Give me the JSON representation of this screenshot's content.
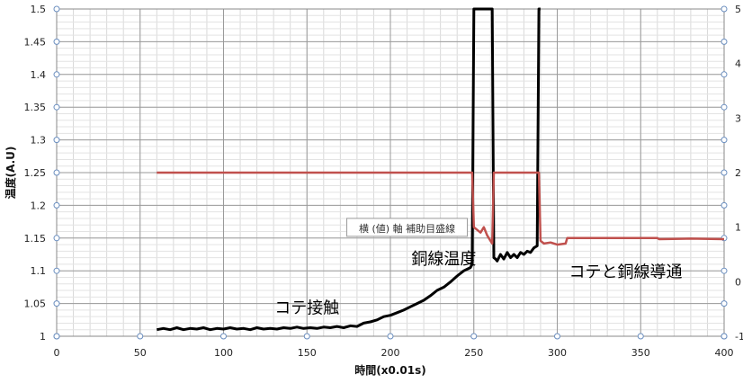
{
  "chart_data": {
    "type": "line",
    "title": "",
    "xlabel": "時間(x0.01s)",
    "ylabel": "温度(A.U)",
    "xlim": [
      0,
      400
    ],
    "ylim": [
      1,
      1.5
    ],
    "y2lim": [
      -1,
      5
    ],
    "x_ticks": [
      0,
      50,
      100,
      150,
      200,
      250,
      300,
      350,
      400
    ],
    "y_ticks": [
      1,
      1.05,
      1.1,
      1.15,
      1.2,
      1.25,
      1.3,
      1.35,
      1.4,
      1.45,
      1.5
    ],
    "y_tick_labels": [
      "1",
      "1.05",
      "1.1",
      "1.15",
      "1.2",
      "1.25",
      "1.3",
      "1.35",
      "1.4",
      "1.45",
      "1.5"
    ],
    "y2_ticks": [
      -1,
      0,
      1,
      2,
      3,
      4,
      5
    ],
    "grid": true,
    "series": [
      {
        "name": "",
        "color": "#000000",
        "axis": "left",
        "x": [
          60,
          64,
          68,
          72,
          76,
          80,
          84,
          88,
          92,
          96,
          100,
          104,
          108,
          112,
          116,
          120,
          124,
          128,
          132,
          136,
          140,
          144,
          148,
          152,
          156,
          160,
          164,
          168,
          172,
          176,
          180,
          184,
          188,
          192,
          196,
          200,
          204,
          208,
          212,
          216,
          220,
          224,
          228,
          232,
          236,
          240,
          244,
          248,
          249,
          250,
          251,
          252,
          260,
          261,
          262,
          263,
          264,
          266,
          268,
          270,
          272,
          274,
          276,
          278,
          280,
          282,
          284,
          286,
          288,
          289,
          290
        ],
        "y": [
          1.01,
          1.012,
          1.01,
          1.013,
          1.01,
          1.012,
          1.011,
          1.013,
          1.01,
          1.012,
          1.011,
          1.013,
          1.011,
          1.012,
          1.01,
          1.013,
          1.011,
          1.012,
          1.011,
          1.013,
          1.012,
          1.014,
          1.012,
          1.013,
          1.012,
          1.014,
          1.013,
          1.015,
          1.013,
          1.016,
          1.015,
          1.02,
          1.022,
          1.025,
          1.03,
          1.032,
          1.036,
          1.04,
          1.045,
          1.05,
          1.055,
          1.062,
          1.07,
          1.075,
          1.083,
          1.092,
          1.1,
          1.105,
          1.11,
          1.5,
          1.5,
          1.5,
          1.5,
          1.5,
          1.12,
          1.118,
          1.115,
          1.125,
          1.118,
          1.128,
          1.12,
          1.125,
          1.12,
          1.128,
          1.125,
          1.13,
          1.128,
          1.135,
          1.138,
          1.5,
          1.5
        ]
      },
      {
        "name": "",
        "color": "#c0504d",
        "axis": "right",
        "x": [
          60,
          248,
          249,
          250,
          252,
          254,
          256,
          258,
          260,
          261,
          262,
          263,
          270,
          280,
          287,
          288,
          289,
          290,
          292,
          296,
          300,
          305,
          306,
          320,
          340,
          360,
          361,
          380,
          400
        ],
        "y": [
          2,
          2,
          2,
          1,
          0.95,
          0.9,
          1,
          0.85,
          0.75,
          0.7,
          2,
          2,
          2,
          2,
          2,
          2,
          2,
          0.75,
          0.7,
          0.72,
          0.68,
          0.7,
          0.8,
          0.8,
          0.8,
          0.8,
          0.78,
          0.79,
          0.78
        ]
      }
    ],
    "annotations": [
      {
        "text": "コテ接触",
        "x": 150,
        "y": 1.035
      },
      {
        "text": "銅線温度",
        "x": 232,
        "y": 1.11
      },
      {
        "text": "コテと銅線導通",
        "x": 341,
        "y": 1.09
      }
    ],
    "tooltip": {
      "text": "横 (値) 軸 補助目盛線",
      "x": 210,
      "y": 1.165
    }
  }
}
